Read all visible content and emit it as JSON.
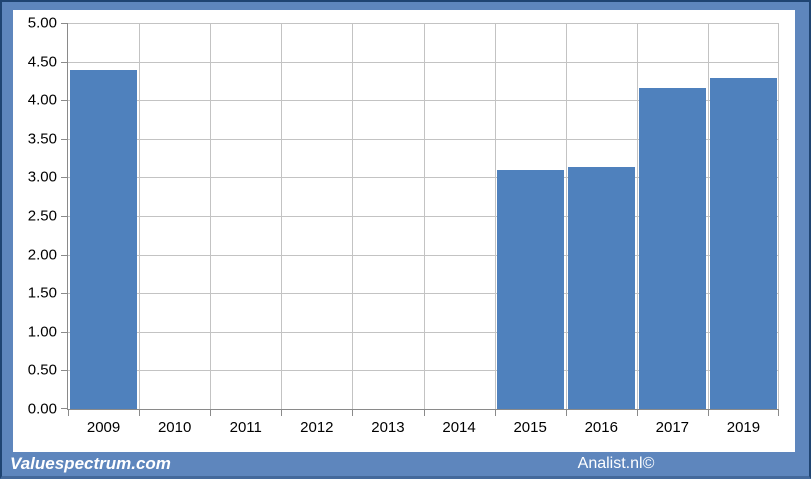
{
  "chart_data": {
    "type": "bar",
    "title": "",
    "xlabel": "",
    "ylabel": "",
    "categories": [
      "2009",
      "2010",
      "2011",
      "2012",
      "2013",
      "2014",
      "2015",
      "2016",
      "2017",
      "2019"
    ],
    "values": [
      4.39,
      null,
      null,
      null,
      null,
      null,
      3.1,
      3.13,
      4.16,
      4.29
    ],
    "ylim": [
      0,
      5
    ],
    "ytick_step": 0.5,
    "ytick_labels": [
      "0.00",
      "0.50",
      "1.00",
      "1.50",
      "2.00",
      "2.50",
      "3.00",
      "3.50",
      "4.00",
      "4.50",
      "5.00"
    ],
    "grid": true,
    "legend": "none",
    "bar_color": "#4f81bd"
  },
  "footer": {
    "left_brand": "Valuespectrum.com",
    "right_brand": "Analist.nl©"
  },
  "colors": {
    "frame_blue": "#5e86bd",
    "frame_dark": "#1f4472",
    "bar_blue": "#4f81bd",
    "gridline": "#c3c3c3",
    "axis_line": "#8a8a8a",
    "axis_text": "#000000",
    "footer_text": "#ffffff"
  }
}
